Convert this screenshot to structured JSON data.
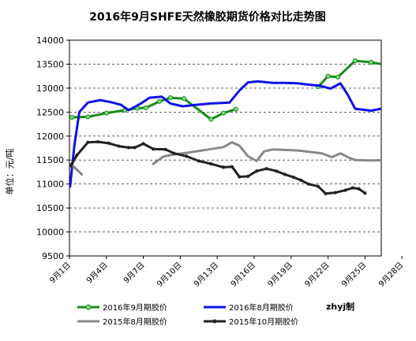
{
  "chart_data": {
    "type": "line",
    "title": "2016年9月SHFE天然橡胶期货价格对比走势图",
    "ylabel": "单位：元/吨",
    "xlabel": "",
    "ylim": [
      9500,
      14000
    ],
    "yticks": [
      9500,
      10000,
      10500,
      11000,
      11500,
      12000,
      12500,
      13000,
      13500,
      14000
    ],
    "xlim": [
      1,
      30.5
    ],
    "xticks": [
      1,
      4,
      7,
      10,
      13,
      16,
      19,
      22,
      25,
      28
    ],
    "xtick_labels": [
      "9月1日",
      "9月4日",
      "9月7日",
      "9月10日",
      "9月13日",
      "9月16日",
      "9月19日",
      "9月22日",
      "9月25日",
      "9月28日"
    ],
    "grid": "horizontal dashed",
    "legend": "bottom",
    "credit": "zhyj制",
    "series": [
      {
        "name": "2016年9月期胶价",
        "color": "#1a8c1a",
        "marker": true,
        "segments": [
          [
            [
              1.2,
              12390
            ],
            [
              2.5,
              12400
            ],
            [
              4,
              12480
            ],
            [
              5.5,
              12540
            ],
            [
              6.5,
              12580
            ],
            [
              7.2,
              12590
            ],
            [
              8.3,
              12720
            ],
            [
              9.2,
              12800
            ],
            [
              10.3,
              12780
            ],
            [
              12.5,
              12350
            ],
            [
              13.5,
              12480
            ],
            [
              14.5,
              12560
            ]
          ],
          [
            [
              21.2,
              13030
            ],
            [
              22,
              13250
            ],
            [
              22.8,
              13230
            ],
            [
              24.2,
              13570
            ],
            [
              25.5,
              13540
            ],
            [
              27,
              13470
            ],
            [
              27.8,
              13310
            ],
            [
              28.8,
              13480
            ],
            [
              29.8,
              13330
            ],
            [
              30.3,
              13280
            ]
          ]
        ]
      },
      {
        "name": "2016年8月期胶价",
        "color": "#1010e6",
        "marker": false,
        "segments": [
          [
            [
              1.05,
              10950
            ],
            [
              1.4,
              11800
            ],
            [
              1.8,
              12500
            ],
            [
              2.5,
              12700
            ],
            [
              3.5,
              12750
            ],
            [
              4.5,
              12700
            ],
            [
              5.2,
              12650
            ],
            [
              5.8,
              12540
            ],
            [
              6.8,
              12680
            ],
            [
              7.5,
              12800
            ],
            [
              8.5,
              12820
            ],
            [
              9.2,
              12680
            ],
            [
              10.2,
              12620
            ],
            [
              11.2,
              12650
            ],
            [
              12.5,
              12680
            ],
            [
              14,
              12700
            ],
            [
              14.8,
              12950
            ],
            [
              15.5,
              13120
            ],
            [
              16.3,
              13140
            ],
            [
              17.5,
              13110
            ],
            [
              18.5,
              13110
            ],
            [
              19.5,
              13100
            ],
            [
              20.5,
              13070
            ],
            [
              21.3,
              13050
            ],
            [
              22.2,
              12990
            ],
            [
              23,
              13100
            ],
            [
              23.6,
              12860
            ],
            [
              24.2,
              12570
            ],
            [
              25.5,
              12530
            ],
            [
              26.5,
              12580
            ],
            [
              27.5,
              12610
            ],
            [
              28.2,
              12600
            ],
            [
              28.8,
              12290
            ],
            [
              29.5,
              12280
            ],
            [
              30,
              12320
            ],
            [
              30.5,
              12370
            ],
            [
              31,
              12280
            ]
          ]
        ]
      },
      {
        "name": "2015年8月期胶价",
        "color": "#888888",
        "marker": false,
        "segments": [
          [
            [
              1.1,
              11420
            ],
            [
              1.6,
              11300
            ],
            [
              2,
              11200
            ]
          ],
          [
            [
              7.8,
              11420
            ],
            [
              8.6,
              11570
            ],
            [
              9.3,
              11610
            ],
            [
              10.5,
              11650
            ],
            [
              12.3,
              11720
            ],
            [
              13.5,
              11770
            ],
            [
              14.2,
              11870
            ],
            [
              14.8,
              11800
            ],
            [
              15.5,
              11580
            ],
            [
              16.2,
              11480
            ],
            [
              16.8,
              11680
            ],
            [
              17.5,
              11720
            ],
            [
              19.5,
              11700
            ],
            [
              21.5,
              11640
            ],
            [
              22.3,
              11560
            ],
            [
              23,
              11640
            ],
            [
              23.6,
              11560
            ],
            [
              24.2,
              11500
            ],
            [
              25.5,
              11490
            ],
            [
              27.5,
              11500
            ],
            [
              28.5,
              11520
            ],
            [
              29,
              11640
            ],
            [
              29.8,
              11630
            ],
            [
              30.5,
              11500
            ],
            [
              31,
              11290
            ],
            [
              31.7,
              11300
            ],
            [
              32.2,
              11320
            ]
          ]
        ]
      },
      {
        "name": "2015年10月期胶价",
        "color": "#222222",
        "marker": true,
        "segments": [
          [
            [
              1.1,
              11380
            ],
            [
              1.6,
              11600
            ],
            [
              2.5,
              11870
            ],
            [
              3.3,
              11880
            ],
            [
              4.2,
              11850
            ],
            [
              5,
              11790
            ],
            [
              5.8,
              11760
            ],
            [
              6.3,
              11760
            ],
            [
              7,
              11840
            ],
            [
              7.8,
              11730
            ],
            [
              8.8,
              11720
            ],
            [
              9.5,
              11640
            ],
            [
              10.5,
              11580
            ],
            [
              11.5,
              11480
            ],
            [
              12.5,
              11420
            ],
            [
              13.5,
              11350
            ],
            [
              14.2,
              11360
            ],
            [
              14.8,
              11150
            ],
            [
              15.5,
              11160
            ],
            [
              16.2,
              11270
            ],
            [
              17,
              11320
            ],
            [
              17.8,
              11270
            ],
            [
              18.5,
              11200
            ],
            [
              19.2,
              11140
            ],
            [
              19.8,
              11080
            ],
            [
              20.4,
              11000
            ],
            [
              21.2,
              10950
            ],
            [
              21.8,
              10800
            ],
            [
              22.6,
              10820
            ],
            [
              23.4,
              10870
            ],
            [
              24,
              10920
            ],
            [
              24.5,
              10900
            ],
            [
              25,
              10810
            ]
          ]
        ]
      }
    ]
  }
}
